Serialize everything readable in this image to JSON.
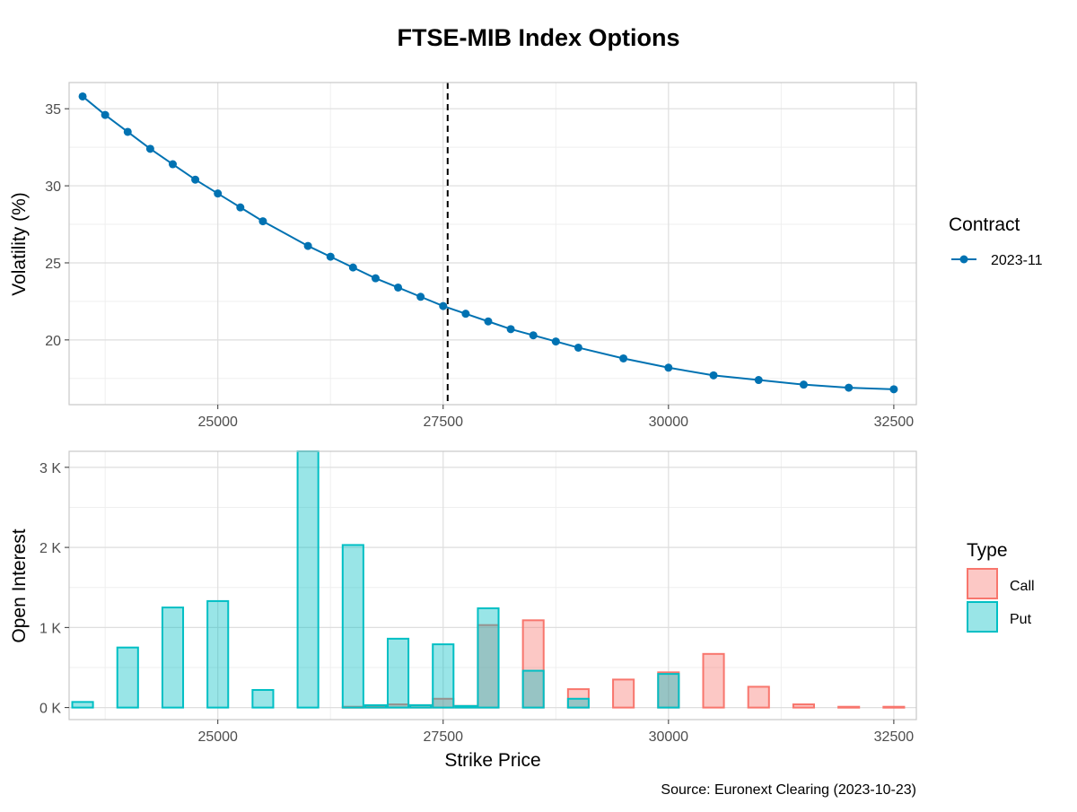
{
  "title": "FTSE-MIB Index Options",
  "source": "Source: Euronext Clearing (2023-10-23)",
  "colors": {
    "volatility_line": "#0072B2",
    "vline": "#000000",
    "call_fill": "#F8766D",
    "put_fill": "#00BFC4",
    "grid_major": "#DEDEDE",
    "grid_minor": "#EFEFEF",
    "panel_border": "#C8C8C8"
  },
  "chart_data": [
    {
      "type": "line",
      "xlim": [
        23350,
        32750
      ],
      "ylim": [
        15.8,
        36.7
      ],
      "yticks": [
        20,
        25,
        30,
        35
      ],
      "xticks": [
        25000,
        27500,
        30000,
        32500
      ],
      "xtick_labels": [
        "25000",
        "27500",
        "30000",
        "32500"
      ],
      "ylabel": "Volatility (%)",
      "xlabel": "",
      "vline": 27550,
      "legend": {
        "title": "Contract",
        "position": "right"
      },
      "series": [
        {
          "name": "2023-11",
          "x": [
            23500,
            23750,
            24000,
            24250,
            24500,
            24750,
            25000,
            25250,
            25500,
            26000,
            26250,
            26500,
            26750,
            27000,
            27250,
            27500,
            27750,
            28000,
            28250,
            28500,
            28750,
            29000,
            29500,
            30000,
            30500,
            31000,
            31500,
            32000,
            32500
          ],
          "y": [
            35.8,
            34.6,
            33.5,
            32.4,
            31.4,
            30.4,
            29.5,
            28.6,
            27.7,
            26.1,
            25.4,
            24.7,
            24.0,
            23.4,
            22.8,
            22.2,
            21.7,
            21.2,
            20.7,
            20.3,
            19.9,
            19.5,
            18.8,
            18.2,
            17.7,
            17.4,
            17.1,
            16.9,
            16.8
          ]
        }
      ]
    },
    {
      "type": "bar",
      "xlim": [
        23350,
        32750
      ],
      "ylim": [
        -0.15,
        3.2
      ],
      "yticks": [
        0,
        1,
        2,
        3
      ],
      "ytick_labels": [
        "0 K",
        "1 K",
        "2 K",
        "3 K"
      ],
      "xticks": [
        25000,
        27500,
        30000,
        32500
      ],
      "xtick_labels": [
        "25000",
        "27500",
        "30000",
        "32500"
      ],
      "xlabel": "Strike Price",
      "ylabel": "Open Interest",
      "y_unit": "thousands",
      "bar_width": 230,
      "legend": {
        "title": "Type",
        "position": "right"
      },
      "series": [
        {
          "name": "Call",
          "x": [
            26500,
            26750,
            27000,
            27250,
            27500,
            27750,
            28000,
            28500,
            29000,
            29500,
            30000,
            30500,
            31000,
            31500,
            32000,
            32500
          ],
          "values": [
            0.01,
            0.02,
            0.04,
            0.03,
            0.11,
            0.02,
            1.03,
            1.09,
            0.23,
            0.35,
            0.44,
            0.67,
            0.26,
            0.04,
            0.01,
            0.01
          ]
        },
        {
          "name": "Put",
          "x": [
            23500,
            24000,
            24500,
            25000,
            25500,
            26000,
            26500,
            26750,
            27000,
            27250,
            27500,
            27750,
            28000,
            28500,
            29000,
            30000
          ],
          "values": [
            0.07,
            0.75,
            1.25,
            1.33,
            0.22,
            3.2,
            2.03,
            0.03,
            0.86,
            0.03,
            0.79,
            0.02,
            1.24,
            0.46,
            0.11,
            0.42
          ]
        }
      ]
    }
  ]
}
